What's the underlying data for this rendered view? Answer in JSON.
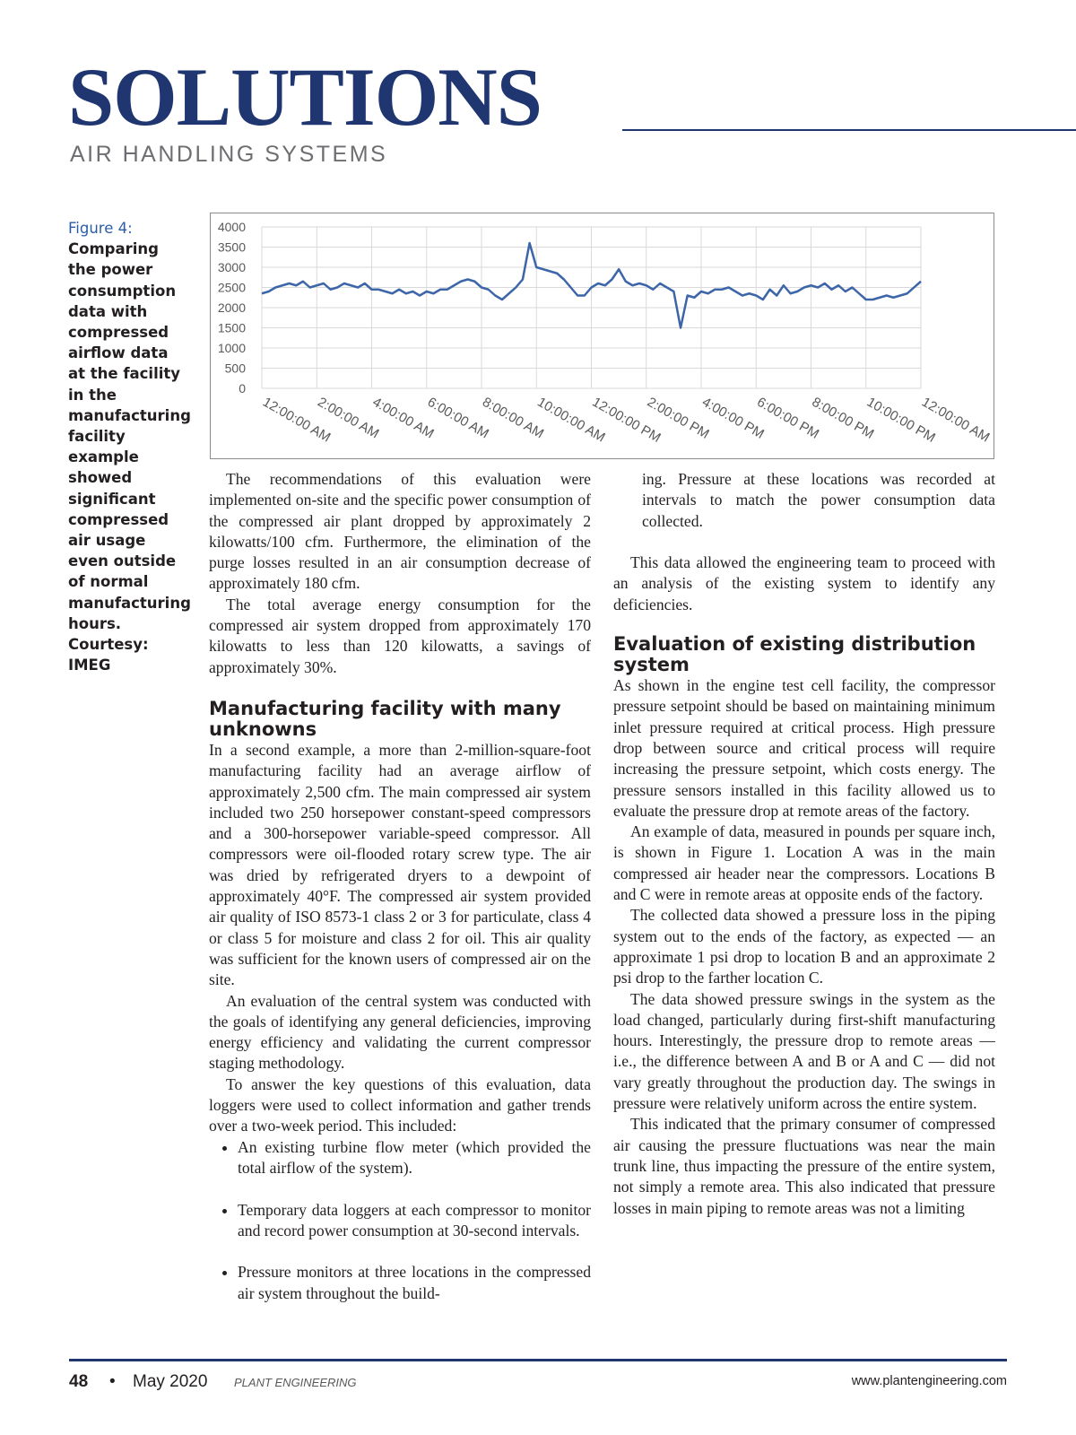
{
  "header": {
    "title": "SOLUTIONS",
    "subtitle": "AIR HANDLING SYSTEMS"
  },
  "figure": {
    "label": "Figure 4:",
    "caption": "Comparing the power consumption data with compressed airflow data at the facility in the manufacturing facility example showed significant compressed air usage even outside of normal manufacturing hours. Courtesy: IMEG"
  },
  "chart_data": {
    "type": "line",
    "color": "#3d66a9",
    "grid": true,
    "xlim": [
      0,
      24
    ],
    "xticks": [
      {
        "value": 0,
        "label": "12:00:00 AM"
      },
      {
        "value": 2,
        "label": "2:00:00 AM"
      },
      {
        "value": 4,
        "label": "4:00:00 AM"
      },
      {
        "value": 6,
        "label": "6:00:00 AM"
      },
      {
        "value": 8,
        "label": "8:00:00 AM"
      },
      {
        "value": 10,
        "label": "10:00:00 AM"
      },
      {
        "value": 12,
        "label": "12:00:00 PM"
      },
      {
        "value": 14,
        "label": "2:00:00 PM"
      },
      {
        "value": 16,
        "label": "4:00:00 PM"
      },
      {
        "value": 18,
        "label": "6:00:00 PM"
      },
      {
        "value": 20,
        "label": "8:00:00 PM"
      },
      {
        "value": 22,
        "label": "10:00:00 PM"
      },
      {
        "value": 24,
        "label": "12:00:00 AM"
      }
    ],
    "ylim": [
      0,
      4000
    ],
    "yticks": [
      0,
      500,
      1000,
      1500,
      2000,
      2500,
      3000,
      3500,
      4000
    ],
    "x": [
      0,
      0.25,
      0.5,
      0.75,
      1,
      1.25,
      1.5,
      1.75,
      2,
      2.25,
      2.5,
      2.75,
      3,
      3.25,
      3.5,
      3.75,
      4,
      4.25,
      4.5,
      4.75,
      5,
      5.25,
      5.5,
      5.75,
      6,
      6.25,
      6.5,
      6.75,
      7,
      7.25,
      7.5,
      7.75,
      8,
      8.25,
      8.5,
      8.75,
      9,
      9.25,
      9.5,
      9.75,
      10,
      10.25,
      10.5,
      10.75,
      11,
      11.25,
      11.5,
      11.75,
      12,
      12.25,
      12.5,
      12.75,
      13,
      13.25,
      13.5,
      13.75,
      14,
      14.25,
      14.5,
      14.75,
      15,
      15.25,
      15.5,
      15.75,
      16,
      16.25,
      16.5,
      16.75,
      17,
      17.25,
      17.5,
      17.75,
      18,
      18.25,
      18.5,
      18.75,
      19,
      19.25,
      19.5,
      19.75,
      20,
      20.25,
      20.5,
      20.75,
      21,
      21.25,
      21.5,
      21.75,
      22,
      22.25,
      22.5,
      22.75,
      23,
      23.25,
      23.5,
      23.75,
      24
    ],
    "values": [
      2350,
      2400,
      2500,
      2550,
      2600,
      2550,
      2650,
      2500,
      2550,
      2600,
      2450,
      2500,
      2600,
      2550,
      2500,
      2600,
      2450,
      2450,
      2400,
      2350,
      2450,
      2350,
      2400,
      2300,
      2400,
      2350,
      2450,
      2450,
      2550,
      2650,
      2700,
      2650,
      2500,
      2450,
      2300,
      2200,
      2350,
      2500,
      2700,
      3600,
      3000,
      2950,
      2900,
      2850,
      2700,
      2500,
      2300,
      2300,
      2500,
      2600,
      2550,
      2700,
      2950,
      2650,
      2550,
      2600,
      2550,
      2450,
      2600,
      2500,
      2400,
      1500,
      2300,
      2250,
      2400,
      2350,
      2450,
      2450,
      2500,
      2400,
      2300,
      2350,
      2300,
      2200,
      2450,
      2300,
      2550,
      2350,
      2400,
      2500,
      2550,
      2500,
      2600,
      2450,
      2550,
      2400,
      2500,
      2350,
      2200,
      2200,
      2250,
      2300,
      2250,
      2300,
      2350,
      2500,
      2650
    ]
  },
  "body": {
    "left": {
      "paragraphs_top": [
        "The recommendations of this evaluation were implemented on-site and the specific power consumption of the compressed air plant dropped by approximately 2 kilowatts/100 cfm. Furthermore, the elimination of the purge losses resulted in an air consumption decrease of approximately 180 cfm.",
        "The total average energy consumption for the compressed air system dropped from approximately 170 kilowatts to less than 120 kilowatts, a savings of approximately 30%."
      ],
      "heading": "Manufacturing facility with many unknowns",
      "paragraphs": [
        "In a second example, a more than 2-million-square-foot manufacturing facility had an average airflow of approximately 2,500 cfm. The main compressed air system included two 250 horsepower constant-speed compressors and a 300-horsepower variable-speed compressor. All compressors were oil-flooded rotary screw type. The air was dried by refrigerated dryers to a dewpoint of approximately 40°F. The compressed air system provided air quality of ISO 8573-1 class 2 or 3 for particulate, class 4 or class 5 for moisture and class 2 for oil. This air quality was sufficient for the known users of compressed air on the site.",
        "An evaluation of the central system was conducted with the goals of identifying any general deficiencies, improving energy efficiency and validating the current compressor staging methodology.",
        "To answer the key questions of this evaluation, data loggers were used to collect information and gather trends over a two-week period. This included:"
      ],
      "bullets": [
        "An existing turbine flow meter (which provided the total airflow of the system).",
        "Temporary data loggers at each compressor to monitor and record power consumption at 30-second intervals.",
        "Pressure monitors at three locations in the compressed air system throughout the build-"
      ]
    },
    "right": {
      "continuation": "ing. Pressure at these locations was recorded at intervals to match the power consumption data collected.",
      "intro": "This data allowed the engineering team to proceed with an analysis of the existing system to identify any deficiencies.",
      "heading": "Evaluation of existing distribution system",
      "paragraphs": [
        "As shown in the engine test cell facility, the compressor pressure setpoint should be based on maintaining minimum inlet pressure required at critical process. High pressure drop between source and critical process will require increasing the pressure setpoint, which costs energy. The pressure sensors installed in this facility allowed us to evaluate the pressure drop at remote areas of the factory.",
        "An example of data, measured in pounds per square inch, is shown in Figure 1. Location A was in the main compressed air header near the compressors. Locations B and C were in remote areas at opposite ends of the factory.",
        "The collected data showed a pressure loss in the piping system out to the ends of the factory, as expected — an approximate 1 psi drop to location B and an approximate 2 psi drop to the farther location C.",
        "The data showed pressure swings in the system as the load changed, particularly during first-shift manufacturing hours. Interestingly, the pressure drop to remote areas — i.e., the difference between A and B or A and C — did not vary greatly throughout the production day. The swings in pressure were relatively uniform across the entire system.",
        "This indicated that the primary consumer of compressed air causing the pressure fluctuations was near the main trunk line, thus impacting the pressure of the entire system, not simply a remote area. This also indicated that pressure losses in main piping to remote areas was not a limiting"
      ]
    }
  },
  "footer": {
    "page": "48",
    "separator": "•",
    "date": "May 2020",
    "magazine": "PLANT ENGINEERING",
    "url": "www.plantengineering.com"
  }
}
